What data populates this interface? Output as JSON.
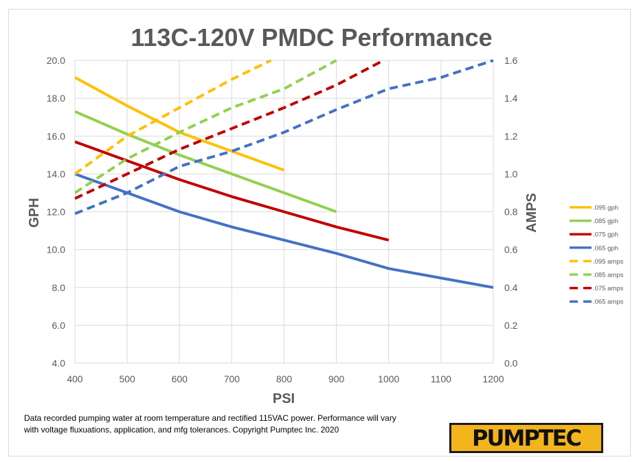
{
  "chart_data": {
    "type": "line",
    "title": "113C-120V PMDC Performance",
    "xlabel": "PSI",
    "ylabel": "GPH",
    "y2label": "AMPS",
    "xlim": [
      400,
      1200
    ],
    "ylim": [
      4,
      20
    ],
    "y2lim": [
      0,
      1.6
    ],
    "xticks": [
      "400",
      "500",
      "600",
      "700",
      "800",
      "900",
      "1000",
      "1100",
      "1200"
    ],
    "yticks": [
      "4.0",
      "6.0",
      "8.0",
      "10.0",
      "12.0",
      "14.0",
      "16.0",
      "18.0",
      "20.0"
    ],
    "y2ticks": [
      "0.0",
      "0.2",
      "0.4",
      "0.6",
      "0.8",
      "1.0",
      "1.2",
      "1.4",
      "1.6"
    ],
    "grid": true,
    "legend": "right",
    "series": [
      {
        "name": ".095 gph",
        "axis": "left",
        "dash": false,
        "color": "#ffc000",
        "x": [
          400,
          500,
          600,
          700,
          800
        ],
        "values": [
          19.1,
          17.6,
          16.2,
          15.2,
          14.2
        ]
      },
      {
        "name": ".085 gph",
        "axis": "left",
        "dash": false,
        "color": "#92d050",
        "x": [
          400,
          500,
          600,
          700,
          800,
          900
        ],
        "values": [
          17.3,
          16.1,
          15.0,
          14.0,
          13.0,
          12.0
        ]
      },
      {
        "name": ".075 gph",
        "axis": "left",
        "dash": false,
        "color": "#c00000",
        "x": [
          400,
          500,
          600,
          700,
          800,
          900,
          1000
        ],
        "values": [
          15.7,
          14.7,
          13.7,
          12.8,
          12.0,
          11.2,
          10.5
        ]
      },
      {
        "name": ".065 gph",
        "axis": "left",
        "dash": false,
        "color": "#4472c4",
        "x": [
          400,
          500,
          600,
          700,
          800,
          900,
          1000,
          1100,
          1200
        ],
        "values": [
          14.0,
          13.0,
          12.0,
          11.2,
          10.5,
          9.8,
          9.0,
          8.5,
          8.0
        ]
      },
      {
        "name": ".095 amps",
        "axis": "right",
        "dash": true,
        "color": "#ffc000",
        "x": [
          400,
          500,
          600,
          700,
          775
        ],
        "values": [
          1.0,
          1.2,
          1.35,
          1.5,
          1.6
        ]
      },
      {
        "name": ".085 amps",
        "axis": "right",
        "dash": true,
        "color": "#92d050",
        "x": [
          400,
          500,
          600,
          700,
          800,
          900
        ],
        "values": [
          0.9,
          1.08,
          1.22,
          1.35,
          1.45,
          1.6
        ]
      },
      {
        "name": ".075 amps",
        "axis": "right",
        "dash": true,
        "color": "#c00000",
        "x": [
          400,
          500,
          600,
          700,
          800,
          900,
          990
        ],
        "values": [
          0.87,
          1.0,
          1.13,
          1.24,
          1.35,
          1.47,
          1.6
        ]
      },
      {
        "name": ".065 amps",
        "axis": "right",
        "dash": true,
        "color": "#4472c4",
        "x": [
          400,
          500,
          600,
          700,
          800,
          900,
          1000,
          1100,
          1200
        ],
        "values": [
          0.79,
          0.9,
          1.04,
          1.12,
          1.22,
          1.34,
          1.45,
          1.51,
          1.6
        ]
      }
    ]
  },
  "footnote": "Data recorded pumping water at room temperature and rectified 115VAC power.  Performance will vary with voltage fluxuations, application, and mfg tolerances.  Copyright Pumptec Inc. 2020",
  "logo_text": "PUMPTEC"
}
